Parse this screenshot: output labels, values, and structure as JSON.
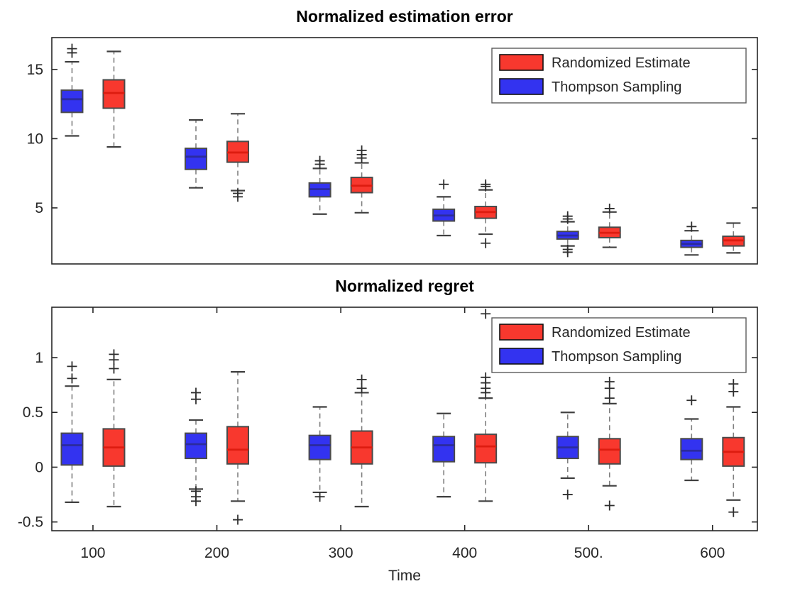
{
  "figure": {
    "background": "#ffffff"
  },
  "colors": {
    "red": "#f8382e",
    "blue": "#3333f0",
    "red_median": "#dd1c10",
    "blue_median": "#2b2b9e",
    "box_edge": "#4a4a4a",
    "whisker": "#7f7f7f",
    "cap": "#404040",
    "outlier": "#2e2e2e",
    "axis": "#262626",
    "legend_border": "#5a5a5a",
    "swatch_border": "#111111"
  },
  "legend": {
    "items": [
      {
        "label": "Randomized Estimate",
        "color": "red"
      },
      {
        "label": "Thompson Sampling",
        "color": "blue"
      }
    ]
  },
  "chart_data": [
    {
      "type": "boxplot",
      "title": "Normalized estimation error",
      "xlabel": "",
      "ylabel": "",
      "xlim": [
        66.8,
        636.2
      ],
      "ylim": [
        0.95,
        17.3
      ],
      "grid": false,
      "legend_position": "top-right",
      "legend_visible": true,
      "x_ticks_visible": false,
      "x": [
        100,
        200,
        300,
        400,
        500,
        600
      ],
      "x_tick_labels": [],
      "yticks": [
        5,
        10,
        15
      ],
      "ytick_labels": [
        "5",
        "10",
        "15"
      ],
      "series": [
        {
          "name": "Thompson Sampling",
          "color": "blue",
          "offset": -16.9,
          "boxes": [
            {
              "x": 100,
              "q1": 11.9,
              "median": 12.85,
              "q3": 13.5,
              "whisker_low": 10.2,
              "whisker_high": 15.55,
              "outliers_high": [
                16.5,
                16.2
              ],
              "outliers_low": []
            },
            {
              "x": 200,
              "q1": 7.78,
              "median": 8.7,
              "q3": 9.3,
              "whisker_low": 6.45,
              "whisker_high": 11.35,
              "outliers_high": [],
              "outliers_low": []
            },
            {
              "x": 300,
              "q1": 5.8,
              "median": 6.35,
              "q3": 6.8,
              "whisker_low": 4.55,
              "whisker_high": 7.85,
              "outliers_high": [
                8.4,
                8.15
              ],
              "outliers_low": []
            },
            {
              "x": 400,
              "q1": 4.05,
              "median": 4.45,
              "q3": 4.9,
              "whisker_low": 3.0,
              "whisker_high": 5.8,
              "outliers_high": [
                6.7
              ],
              "outliers_low": []
            },
            {
              "x": 500,
              "q1": 2.75,
              "median": 3.0,
              "q3": 3.3,
              "whisker_low": 2.25,
              "whisker_high": 4.0,
              "outliers_high": [
                4.4,
                4.2
              ],
              "outliers_low": [
                2.0,
                1.8
              ]
            },
            {
              "x": 600,
              "q1": 2.15,
              "median": 2.4,
              "q3": 2.65,
              "whisker_low": 1.6,
              "whisker_high": 3.35,
              "outliers_high": [
                3.65
              ],
              "outliers_low": []
            }
          ]
        },
        {
          "name": "Randomized Estimate",
          "color": "red",
          "offset": 16.9,
          "boxes": [
            {
              "x": 100,
              "q1": 12.2,
              "median": 13.3,
              "q3": 14.25,
              "whisker_low": 9.4,
              "whisker_high": 16.3,
              "outliers_high": [],
              "outliers_low": []
            },
            {
              "x": 200,
              "q1": 8.3,
              "median": 9.0,
              "q3": 9.8,
              "whisker_low": 6.25,
              "whisker_high": 11.8,
              "outliers_high": [],
              "outliers_low": [
                6.05,
                5.8
              ]
            },
            {
              "x": 300,
              "q1": 6.1,
              "median": 6.6,
              "q3": 7.2,
              "whisker_low": 4.65,
              "whisker_high": 8.25,
              "outliers_high": [
                9.15,
                8.85,
                8.6
              ],
              "outliers_low": []
            },
            {
              "x": 400,
              "q1": 4.25,
              "median": 4.7,
              "q3": 5.1,
              "whisker_low": 3.1,
              "whisker_high": 6.3,
              "outliers_high": [
                6.7,
                6.55
              ],
              "outliers_low": [
                2.45
              ]
            },
            {
              "x": 500,
              "q1": 2.85,
              "median": 3.2,
              "q3": 3.6,
              "whisker_low": 2.15,
              "whisker_high": 4.7,
              "outliers_high": [
                4.95
              ],
              "outliers_low": []
            },
            {
              "x": 600,
              "q1": 2.25,
              "median": 2.65,
              "q3": 2.95,
              "whisker_low": 1.75,
              "whisker_high": 3.9,
              "outliers_high": [],
              "outliers_low": []
            }
          ]
        }
      ]
    },
    {
      "type": "boxplot",
      "title": "Normalized regret",
      "xlabel": "Time",
      "ylabel": "",
      "xlim": [
        66.8,
        636.2
      ],
      "ylim": [
        -0.58,
        1.46
      ],
      "grid": false,
      "legend_position": "top-right",
      "legend_visible": true,
      "x_ticks_visible": true,
      "x": [
        100,
        200,
        300,
        400,
        500,
        600
      ],
      "x_tick_labels": [
        "100",
        "200",
        "300",
        "400",
        "500.",
        "600"
      ],
      "yticks": [
        -0.5,
        0,
        0.5,
        1
      ],
      "ytick_labels": [
        "-0.5",
        "0",
        "0.5",
        "1"
      ],
      "series": [
        {
          "name": "Thompson Sampling",
          "color": "blue",
          "offset": -16.9,
          "boxes": [
            {
              "x": 100,
              "q1": 0.02,
              "median": 0.2,
              "q3": 0.31,
              "whisker_low": -0.32,
              "whisker_high": 0.74,
              "outliers_high": [
                0.92,
                0.81
              ],
              "outliers_low": []
            },
            {
              "x": 200,
              "q1": 0.08,
              "median": 0.21,
              "q3": 0.31,
              "whisker_low": -0.2,
              "whisker_high": 0.43,
              "outliers_high": [
                0.68,
                0.62
              ],
              "outliers_low": [
                -0.22,
                -0.27,
                -0.31
              ]
            },
            {
              "x": 300,
              "q1": 0.07,
              "median": 0.2,
              "q3": 0.29,
              "whisker_low": -0.23,
              "whisker_high": 0.55,
              "outliers_high": [],
              "outliers_low": [
                -0.27
              ]
            },
            {
              "x": 400,
              "q1": 0.05,
              "median": 0.2,
              "q3": 0.28,
              "whisker_low": -0.27,
              "whisker_high": 0.49,
              "outliers_high": [],
              "outliers_low": []
            },
            {
              "x": 500,
              "q1": 0.08,
              "median": 0.18,
              "q3": 0.28,
              "whisker_low": -0.1,
              "whisker_high": 0.5,
              "outliers_high": [],
              "outliers_low": [
                -0.25
              ]
            },
            {
              "x": 600,
              "q1": 0.07,
              "median": 0.15,
              "q3": 0.26,
              "whisker_low": -0.12,
              "whisker_high": 0.44,
              "outliers_high": [
                0.61
              ],
              "outliers_low": []
            }
          ]
        },
        {
          "name": "Randomized Estimate",
          "color": "red",
          "offset": 16.9,
          "boxes": [
            {
              "x": 100,
              "q1": 0.01,
              "median": 0.18,
              "q3": 0.35,
              "whisker_low": -0.36,
              "whisker_high": 0.8,
              "outliers_high": [
                1.03,
                0.98,
                0.9
              ],
              "outliers_low": []
            },
            {
              "x": 200,
              "q1": 0.03,
              "median": 0.16,
              "q3": 0.37,
              "whisker_low": -0.31,
              "whisker_high": 0.87,
              "outliers_high": [],
              "outliers_low": [
                -0.48
              ]
            },
            {
              "x": 300,
              "q1": 0.03,
              "median": 0.18,
              "q3": 0.33,
              "whisker_low": -0.36,
              "whisker_high": 0.68,
              "outliers_high": [
                0.8,
                0.72
              ],
              "outliers_low": []
            },
            {
              "x": 400,
              "q1": 0.04,
              "median": 0.19,
              "q3": 0.3,
              "whisker_low": -0.31,
              "whisker_high": 0.63,
              "outliers_high": [
                1.4,
                0.82,
                0.77,
                0.72,
                0.68
              ],
              "outliers_low": []
            },
            {
              "x": 500,
              "q1": 0.03,
              "median": 0.16,
              "q3": 0.26,
              "whisker_low": -0.17,
              "whisker_high": 0.58,
              "outliers_high": [
                0.78,
                0.72,
                0.63
              ],
              "outliers_low": [
                -0.35
              ]
            },
            {
              "x": 600,
              "q1": 0.01,
              "median": 0.14,
              "q3": 0.27,
              "whisker_low": -0.3,
              "whisker_high": 0.55,
              "outliers_high": [
                0.76,
                0.69
              ],
              "outliers_low": [
                -0.41
              ]
            }
          ]
        }
      ]
    }
  ]
}
